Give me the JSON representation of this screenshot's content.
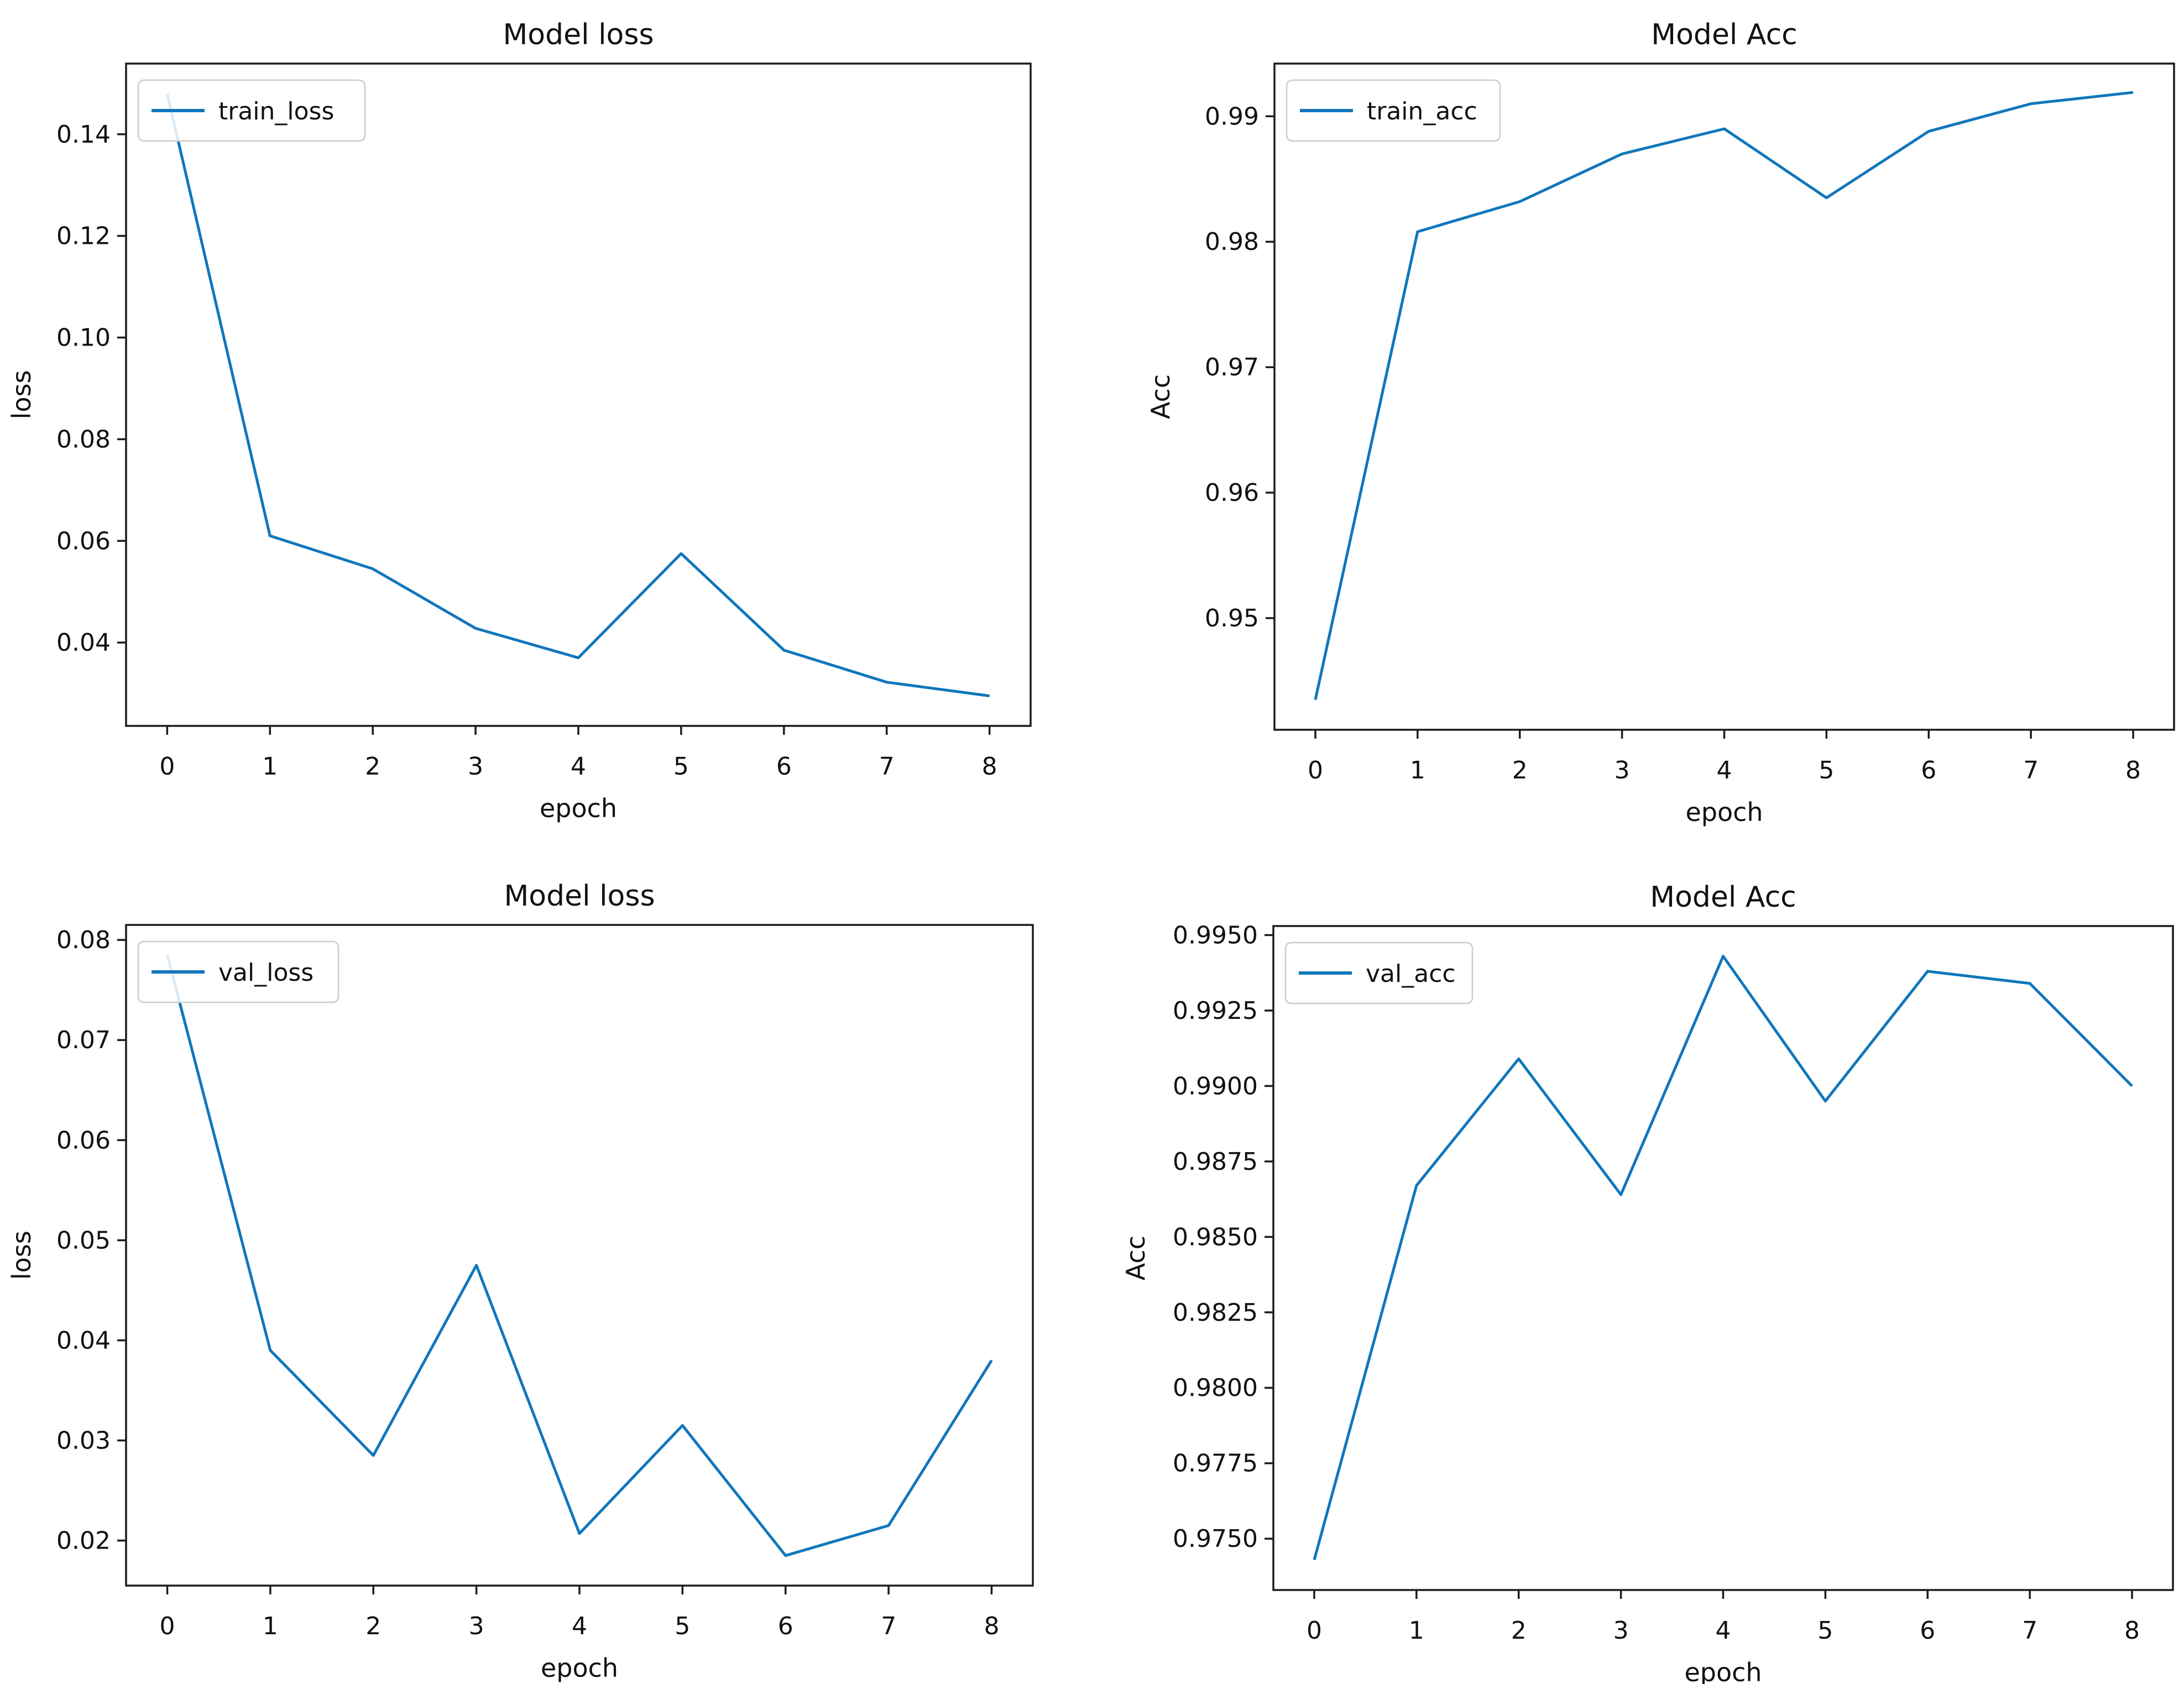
{
  "figure": {
    "background": "#ffffff",
    "line_color": "#1076bc",
    "spine_color": "#1c1c1c",
    "text_color": "#111111",
    "legend_border": "#cccccc",
    "legend_fill": "#ffffff"
  },
  "chart_data": [
    {
      "id": "train-loss",
      "type": "line",
      "title": "Model loss",
      "xlabel": "epoch",
      "ylabel": "loss",
      "legend": [
        "train_loss"
      ],
      "legend_position": "upper-left",
      "grid": false,
      "x": [
        0,
        1,
        2,
        3,
        4,
        5,
        6,
        7,
        8
      ],
      "values": [
        0.148,
        0.061,
        0.0545,
        0.0428,
        0.037,
        0.0575,
        0.0385,
        0.0322,
        0.0295
      ],
      "xlim": [
        -0.4,
        8.4
      ],
      "ylim": [
        0.0236,
        0.1539
      ],
      "xticks": [
        0,
        1,
        2,
        3,
        4,
        5,
        6,
        7,
        8
      ],
      "yticks": [
        0.04,
        0.06,
        0.08,
        0.1,
        0.12,
        0.14
      ],
      "ytick_labels": [
        "0.04",
        "0.06",
        "0.08",
        "0.10",
        "0.12",
        "0.14"
      ]
    },
    {
      "id": "train-acc",
      "type": "line",
      "title": "Model Acc",
      "xlabel": "epoch",
      "ylabel": "Acc",
      "legend": [
        "train_acc"
      ],
      "legend_position": "upper-left",
      "grid": false,
      "x": [
        0,
        1,
        2,
        3,
        4,
        5,
        6,
        7,
        8
      ],
      "values": [
        0.9435,
        0.9808,
        0.9832,
        0.987,
        0.989,
        0.9835,
        0.9888,
        0.991,
        0.9919
      ],
      "xlim": [
        -0.4,
        8.4
      ],
      "ylim": [
        0.9411,
        0.9942
      ],
      "xticks": [
        0,
        1,
        2,
        3,
        4,
        5,
        6,
        7,
        8
      ],
      "yticks": [
        0.95,
        0.96,
        0.97,
        0.98,
        0.99
      ],
      "ytick_labels": [
        "0.95",
        "0.96",
        "0.97",
        "0.98",
        "0.99"
      ]
    },
    {
      "id": "val-loss",
      "type": "line",
      "title": "Model loss",
      "xlabel": "epoch",
      "ylabel": "loss",
      "legend": [
        "val_loss"
      ],
      "legend_position": "upper-left",
      "grid": false,
      "x": [
        0,
        1,
        2,
        3,
        4,
        5,
        6,
        7,
        8
      ],
      "values": [
        0.0785,
        0.039,
        0.0285,
        0.0475,
        0.0207,
        0.0315,
        0.0185,
        0.0215,
        0.038
      ],
      "xlim": [
        -0.4,
        8.4
      ],
      "ylim": [
        0.0155,
        0.0815
      ],
      "xticks": [
        0,
        1,
        2,
        3,
        4,
        5,
        6,
        7,
        8
      ],
      "yticks": [
        0.02,
        0.03,
        0.04,
        0.05,
        0.06,
        0.07,
        0.08
      ],
      "ytick_labels": [
        "0.02",
        "0.03",
        "0.04",
        "0.05",
        "0.06",
        "0.07",
        "0.08"
      ]
    },
    {
      "id": "val-acc",
      "type": "line",
      "title": "Model Acc",
      "xlabel": "epoch",
      "ylabel": "Acc",
      "legend": [
        "val_acc"
      ],
      "legend_position": "upper-left",
      "grid": false,
      "x": [
        0,
        1,
        2,
        3,
        4,
        5,
        6,
        7,
        8
      ],
      "values": [
        0.9743,
        0.9867,
        0.9909,
        0.9864,
        0.9943,
        0.9895,
        0.9938,
        0.9934,
        0.99
      ],
      "xlim": [
        -0.4,
        8.4
      ],
      "ylim": [
        0.9733,
        0.9953
      ],
      "xticks": [
        0,
        1,
        2,
        3,
        4,
        5,
        6,
        7,
        8
      ],
      "yticks": [
        0.975,
        0.9775,
        0.98,
        0.9825,
        0.985,
        0.9875,
        0.99,
        0.9925,
        0.995
      ],
      "ytick_labels": [
        "0.9750",
        "0.9775",
        "0.9800",
        "0.9825",
        "0.9850",
        "0.9875",
        "0.9900",
        "0.9925",
        "0.9950"
      ]
    }
  ]
}
